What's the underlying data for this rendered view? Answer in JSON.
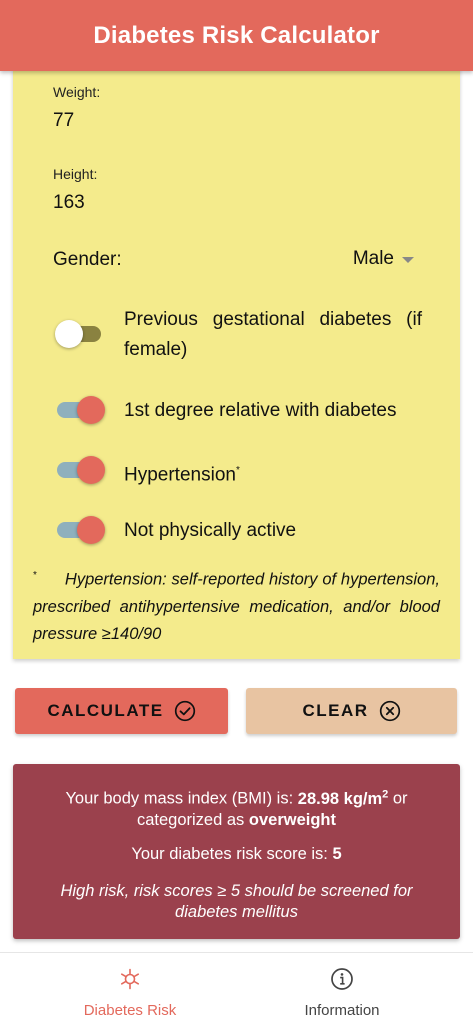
{
  "app_bar": {
    "title": "Diabetes Risk Calculator"
  },
  "form": {
    "weight": {
      "label": "Weight:",
      "value": "77"
    },
    "height": {
      "label": "Height:",
      "value": "163"
    },
    "gender": {
      "label": "Gender:",
      "value": "Male"
    },
    "toggles": [
      {
        "label": "Previous gestational diabetes (if female)",
        "checked": false
      },
      {
        "label": "1st degree relative with diabetes",
        "checked": true
      },
      {
        "label": "Hypertension",
        "marker": "*",
        "checked": true
      },
      {
        "label": "Not physically active",
        "checked": true
      }
    ],
    "footnote": {
      "marker": "*",
      "text": "Hypertension: self-reported history of hypertension, prescribed antihypertensive medication, and/or blood pressure ≥140/90"
    }
  },
  "buttons": {
    "calculate_label": "CALCULATE",
    "clear_label": "CLEAR"
  },
  "result": {
    "bmi_prefix": "Your body mass index (BMI) is: ",
    "bmi_value": "28.98 kg/m",
    "bmi_exponent": "2",
    "bmi_mid": " or categorized as ",
    "bmi_category": "overweight",
    "score_prefix": "Your diabetes risk score is: ",
    "score_value": "5",
    "note": "High risk, risk scores ≥ 5 should be screened for diabetes mellitus"
  },
  "bottom_nav": {
    "items": [
      {
        "label": "Diabetes Risk",
        "icon": "asterisk-icon",
        "active": true
      },
      {
        "label": "Information",
        "icon": "info-icon",
        "active": false
      }
    ]
  },
  "colors": {
    "primary": "#e3695c",
    "form_background": "#f4eb8c",
    "result_background": "#9b414d",
    "clear_button": "#e8c4a2",
    "switch_track_on": "#8fb0bd"
  }
}
